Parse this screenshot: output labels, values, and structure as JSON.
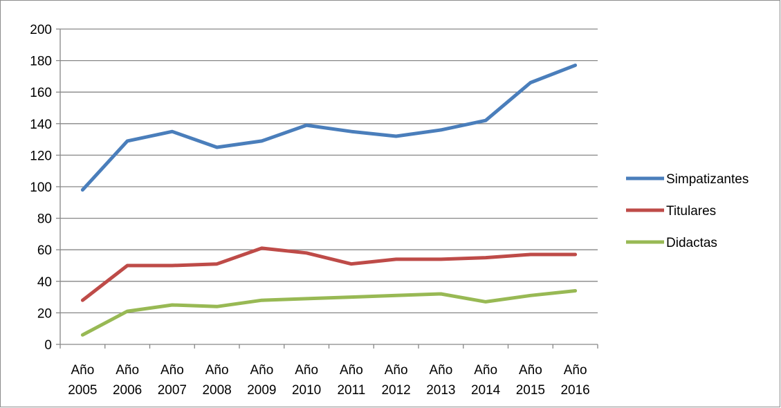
{
  "chart_data": {
    "type": "line",
    "title": "",
    "xlabel": "",
    "ylabel": "",
    "categories": [
      [
        "Año",
        "2005"
      ],
      [
        "Año",
        "2006"
      ],
      [
        "Año",
        "2007"
      ],
      [
        "Año",
        "2008"
      ],
      [
        "Año",
        "2009"
      ],
      [
        "Año",
        "2010"
      ],
      [
        "Año",
        "2011"
      ],
      [
        "Año",
        "2012"
      ],
      [
        "Año",
        "2013"
      ],
      [
        "Año",
        "2014"
      ],
      [
        "Año",
        "2015"
      ],
      [
        "Año",
        "2016"
      ]
    ],
    "ylim": [
      0,
      200
    ],
    "yticks": [
      0,
      20,
      40,
      60,
      80,
      100,
      120,
      140,
      160,
      180,
      200
    ],
    "grid": "horizontal",
    "legend_position": "right",
    "series": [
      {
        "name": "Simpatizantes",
        "color": "#4a7ebb",
        "values": [
          98,
          129,
          135,
          125,
          129,
          139,
          135,
          132,
          136,
          142,
          166,
          177
        ]
      },
      {
        "name": "Titulares",
        "color": "#be4b48",
        "values": [
          28,
          50,
          50,
          51,
          61,
          58,
          51,
          54,
          54,
          55,
          57,
          57
        ]
      },
      {
        "name": "Didactas",
        "color": "#98b954",
        "values": [
          6,
          21,
          25,
          24,
          28,
          29,
          30,
          31,
          32,
          27,
          31,
          34
        ]
      }
    ]
  }
}
